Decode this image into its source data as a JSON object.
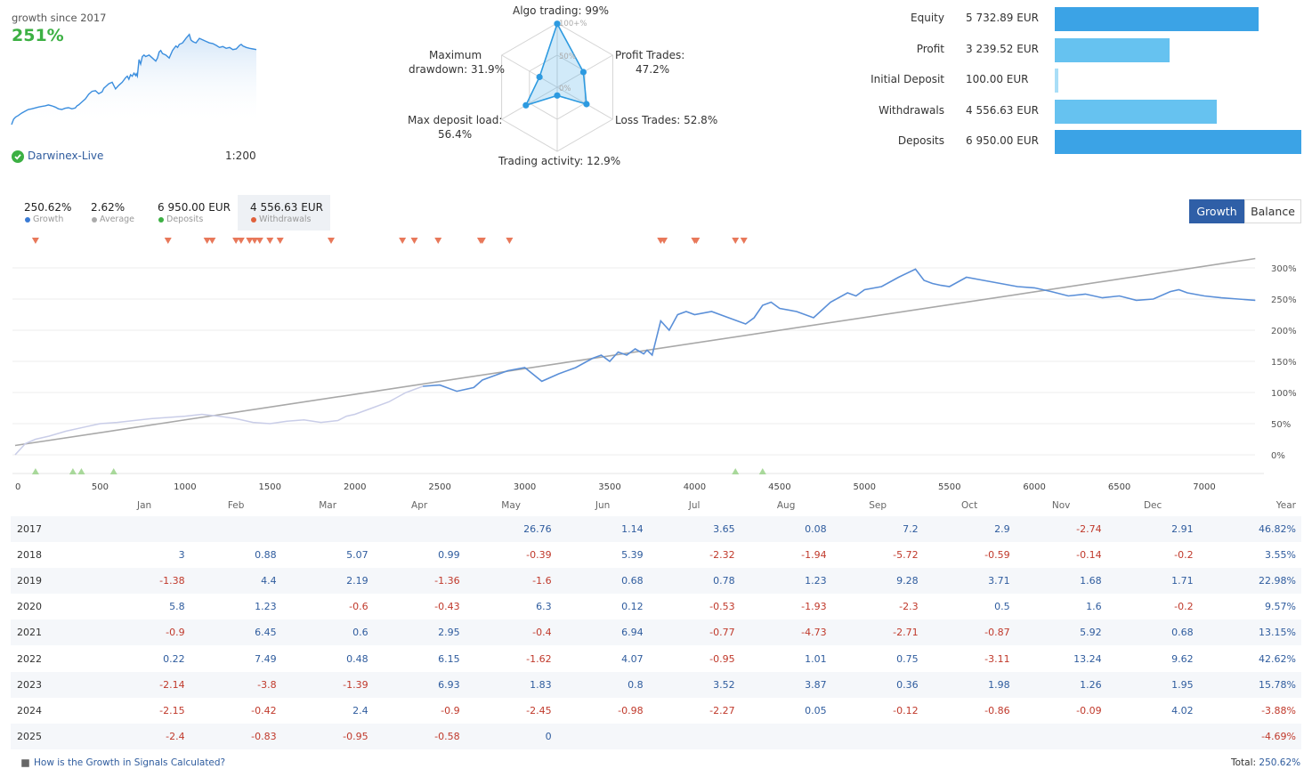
{
  "header": {
    "growth_since_label": "growth since 2017",
    "growth_value": "251%",
    "broker": "Darwinex-Live",
    "leverage": "1:200"
  },
  "radar": {
    "title_top": "Algo trading: 99%",
    "profit_trades_label": "Profit Trades:",
    "profit_trades_value": "47.2%",
    "loss_trades": "Loss Trades: 52.8%",
    "trading_activity": "Trading activity: 12.9%",
    "max_deposit_load_label": "Max deposit load:",
    "max_deposit_load_value": "56.4%",
    "max_drawdown_label": "Maximum",
    "max_drawdown_value": "drawdown: 31.9%",
    "ring_labels": [
      "100+%",
      "50%",
      "0%"
    ],
    "axes": [
      {
        "name": "Algo trading",
        "value": 99
      },
      {
        "name": "Profit Trades",
        "value": 47.2
      },
      {
        "name": "Loss Trades",
        "value": 52.8
      },
      {
        "name": "Trading activity",
        "value": 12.9
      },
      {
        "name": "Max deposit load",
        "value": 56.4
      },
      {
        "name": "Maximum drawdown",
        "value": 31.9
      }
    ]
  },
  "account_bars": {
    "items": [
      {
        "label": "Equity",
        "value": "5 732.89 EUR",
        "amount": 5732.89,
        "color": "#3ba3e6"
      },
      {
        "label": "Profit",
        "value": "3 239.52 EUR",
        "amount": 3239.52,
        "color": "#66c2f0"
      },
      {
        "label": "Initial Deposit",
        "value": "100.00 EUR",
        "amount": 100.0,
        "color": "#a9def7"
      },
      {
        "label": "Withdrawals",
        "value": "4 556.63 EUR",
        "amount": 4556.63,
        "color": "#66c2f0"
      },
      {
        "label": "Deposits",
        "value": "6 950.00 EUR",
        "amount": 6950.0,
        "color": "#3ba3e6"
      }
    ],
    "max_amount": 6950.0
  },
  "stats": [
    {
      "value": "250.62%",
      "label": "Growth",
      "dot": "#3a7bd5"
    },
    {
      "value": "2.62%",
      "label": "Average",
      "dot": "#aaaaaa"
    },
    {
      "value": "6 950.00 EUR",
      "label": "Deposits",
      "dot": "#3cb043"
    },
    {
      "value": "4 556.63 EUR",
      "label": "Withdrawals",
      "dot": "#e0603b"
    }
  ],
  "toggle": {
    "growth": "Growth",
    "balance": "Balance"
  },
  "chart_data": {
    "type": "line",
    "x_ticks": [
      "0",
      "500",
      "1000",
      "1500",
      "2000",
      "2500",
      "3000",
      "3500",
      "4000",
      "4500",
      "5000",
      "5500",
      "6000",
      "6500",
      "7000"
    ],
    "y_ticks": [
      "300%",
      "250%",
      "200%",
      "150%",
      "100%",
      "50%",
      "0%"
    ],
    "xlim": [
      0,
      7500
    ],
    "ylim": [
      -20,
      320
    ],
    "series": [
      {
        "x": [
          0,
          60,
          120,
          200,
          300,
          400,
          500,
          600,
          700,
          800,
          900,
          1000,
          1100,
          1200,
          1300,
          1400,
          1500,
          1600,
          1700,
          1800,
          1900,
          1950,
          2000,
          2100,
          2200,
          2300,
          2400,
          2500,
          2600,
          2650,
          2700,
          2750,
          2800,
          2900,
          3000,
          3100,
          3200,
          3300,
          3400,
          3450,
          3500,
          3550,
          3600,
          3650,
          3700,
          3720,
          3750,
          3800,
          3850,
          3900,
          3950,
          4000,
          4100,
          4200,
          4300,
          4350,
          4400,
          4450,
          4500,
          4600,
          4700,
          4800,
          4900,
          4950,
          5000,
          5100,
          5200,
          5300,
          5350,
          5400,
          5450,
          5500,
          5600,
          5700,
          5800,
          5900,
          6000,
          6100,
          6200,
          6300,
          6400,
          6500,
          6600,
          6700,
          6800,
          6850,
          6900,
          7000,
          7100,
          7200,
          7300
        ],
        "y": [
          0,
          18,
          25,
          30,
          38,
          44,
          50,
          52,
          55,
          58,
          60,
          62,
          65,
          62,
          58,
          52,
          50,
          54,
          56,
          52,
          55,
          62,
          65,
          75,
          85,
          100,
          110,
          112,
          102,
          105,
          108,
          120,
          125,
          135,
          140,
          118,
          130,
          140,
          155,
          160,
          150,
          165,
          160,
          170,
          162,
          168,
          160,
          215,
          200,
          225,
          230,
          225,
          230,
          220,
          210,
          220,
          240,
          245,
          235,
          230,
          220,
          245,
          260,
          255,
          265,
          270,
          285,
          298,
          280,
          275,
          272,
          270,
          285,
          280,
          275,
          270,
          268,
          262,
          255,
          258,
          252,
          255,
          248,
          250,
          262,
          265,
          260,
          255,
          252,
          250,
          248
        ],
        "color": "#5a8fd8"
      },
      {
        "x": [
          0,
          7300
        ],
        "y": [
          15,
          315
        ],
        "color": "#a0a0a0"
      }
    ],
    "withdrawal_markers_x": [
      120,
      900,
      1130,
      1160,
      1300,
      1330,
      1380,
      1410,
      1440,
      1500,
      1560,
      1860,
      2280,
      2350,
      2490,
      2740,
      2750,
      2910,
      3800,
      3820,
      4000,
      4010,
      4240,
      4290
    ],
    "deposit_markers_x": [
      120,
      340,
      390,
      580,
      4240,
      4400
    ]
  },
  "monthly": {
    "headers": [
      "",
      "Jan",
      "Feb",
      "Mar",
      "Apr",
      "May",
      "Jun",
      "Jul",
      "Aug",
      "Sep",
      "Oct",
      "Nov",
      "Dec",
      "Year"
    ],
    "rows": [
      [
        "2017",
        "",
        "",
        "",
        "",
        "26.76",
        "1.14",
        "3.65",
        "0.08",
        "7.2",
        "2.9",
        "-2.74",
        "2.91",
        "46.82%"
      ],
      [
        "2018",
        "3",
        "0.88",
        "5.07",
        "0.99",
        "-0.39",
        "5.39",
        "-2.32",
        "-1.94",
        "-5.72",
        "-0.59",
        "-0.14",
        "-0.2",
        "3.55%"
      ],
      [
        "2019",
        "-1.38",
        "4.4",
        "2.19",
        "-1.36",
        "-1.6",
        "0.68",
        "0.78",
        "1.23",
        "9.28",
        "3.71",
        "1.68",
        "1.71",
        "22.98%"
      ],
      [
        "2020",
        "5.8",
        "1.23",
        "-0.6",
        "-0.43",
        "6.3",
        "0.12",
        "-0.53",
        "-1.93",
        "-2.3",
        "0.5",
        "1.6",
        "-0.2",
        "9.57%"
      ],
      [
        "2021",
        "-0.9",
        "6.45",
        "0.6",
        "2.95",
        "-0.4",
        "6.94",
        "-0.77",
        "-4.73",
        "-2.71",
        "-0.87",
        "5.92",
        "0.68",
        "13.15%"
      ],
      [
        "2022",
        "0.22",
        "7.49",
        "0.48",
        "6.15",
        "-1.62",
        "4.07",
        "-0.95",
        "1.01",
        "0.75",
        "-3.11",
        "13.24",
        "9.62",
        "42.62%"
      ],
      [
        "2023",
        "-2.14",
        "-3.8",
        "-1.39",
        "6.93",
        "1.83",
        "0.8",
        "3.52",
        "3.87",
        "0.36",
        "1.98",
        "1.26",
        "1.95",
        "15.78%"
      ],
      [
        "2024",
        "-2.15",
        "-0.42",
        "2.4",
        "-0.9",
        "-2.45",
        "-0.98",
        "-2.27",
        "0.05",
        "-0.12",
        "-0.86",
        "-0.09",
        "4.02",
        "-3.88%"
      ],
      [
        "2025",
        "-2.4",
        "-0.83",
        "-0.95",
        "-0.58",
        "0",
        "",
        "",
        "",
        "",
        "",
        "",
        "",
        "-4.69%"
      ]
    ]
  },
  "footer": {
    "help_link": "How is the Growth in Signals Calculated?",
    "total_label": "Total:",
    "total_value": "250.62%"
  }
}
